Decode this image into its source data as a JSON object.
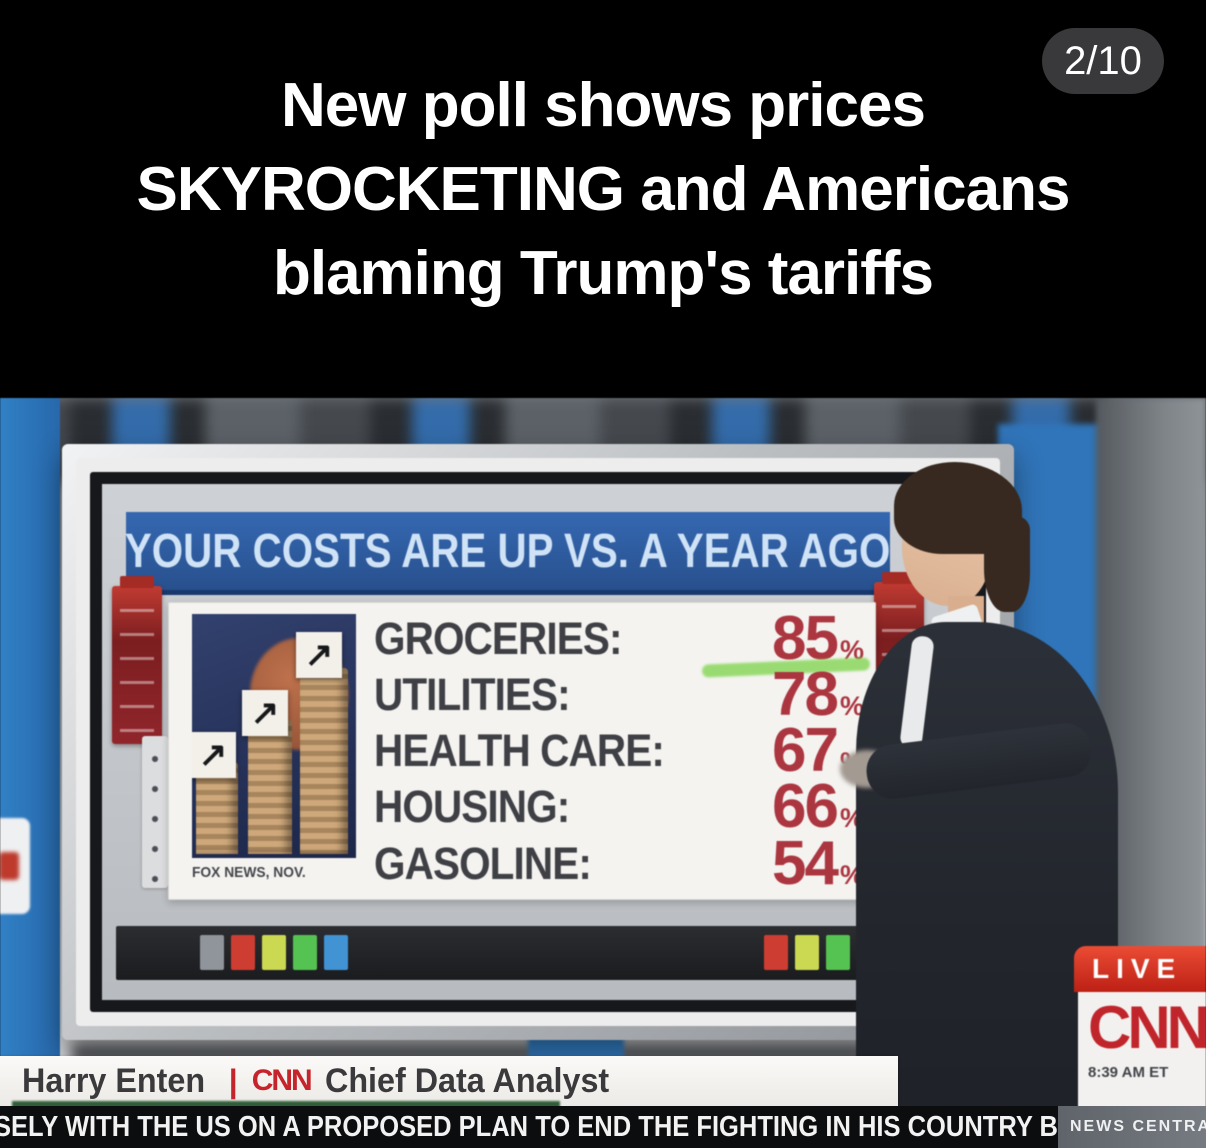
{
  "post": {
    "page_indicator": "2/10",
    "headline_lines": [
      "New poll shows prices",
      "SKYROCKETING and Americans",
      "blaming Trump's tariffs"
    ]
  },
  "broadcast": {
    "board": {
      "title": "YOUR COSTS ARE UP VS. A YEAR AGO",
      "source": "FOX NEWS, NOV.",
      "rows": [
        {
          "label": "GROCERIES:",
          "value": "85",
          "unit": "%",
          "highlighted": true
        },
        {
          "label": "UTILITIES:",
          "value": "78",
          "unit": "%",
          "highlighted": false
        },
        {
          "label": "HEALTH CARE:",
          "value": "67",
          "unit": "%",
          "highlighted": false
        },
        {
          "label": "HOUSING:",
          "value": "66",
          "unit": "%",
          "highlighted": false
        },
        {
          "label": "GASOLINE:",
          "value": "54",
          "unit": "%",
          "highlighted": false
        }
      ]
    },
    "live_badge": "LIVE",
    "network_logo": "CNN",
    "timestamp": "8:39 AM ET",
    "lower_third": {
      "name": "Harry Enten",
      "separator": "|",
      "network": "CNN",
      "role": "Chief Data Analyst"
    },
    "ticker": {
      "text": "SELY WITH THE US ON A PROPOSED PLAN TO END THE FIGHTING IN HIS COUNTRY BL",
      "right_label": "NEWS CENTRAL"
    }
  },
  "icons": {
    "up_right_arrow": "↗"
  },
  "colors": {
    "cnn_red": "#c5242b",
    "live_red": "#d2281e",
    "board_blue": "#2b5ca8",
    "value_red": "#ae3540",
    "highlight_green": "#82d74f"
  },
  "chart_data": {
    "type": "table",
    "title": "YOUR COSTS ARE UP VS. A YEAR AGO",
    "categories": [
      "GROCERIES",
      "UTILITIES",
      "HEALTH CARE",
      "HOUSING",
      "GASOLINE"
    ],
    "values": [
      85,
      78,
      67,
      66,
      54
    ],
    "unit": "%",
    "source": "FOX NEWS, NOV.",
    "annotations": [
      "GROCERIES 85% underlined in green marker"
    ]
  }
}
